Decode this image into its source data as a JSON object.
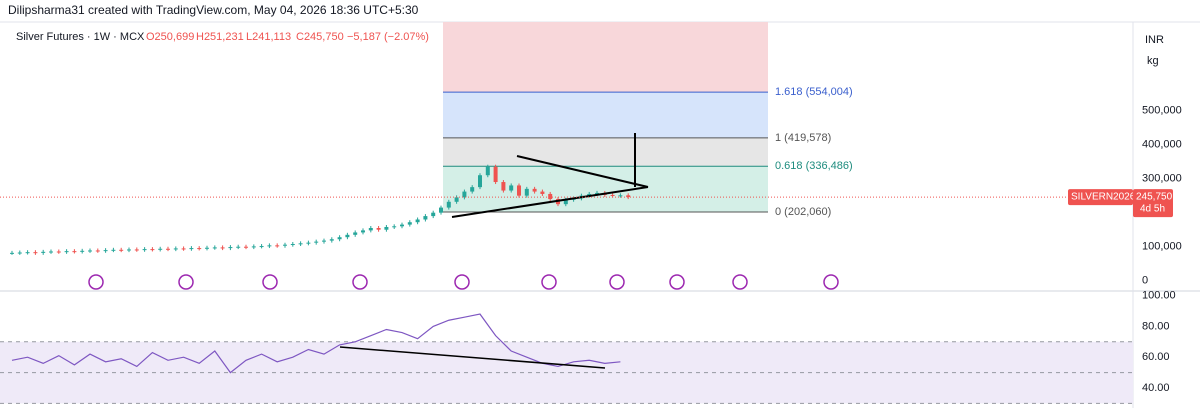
{
  "header": {
    "text": "Dilipsharma31 created with TradingView.com, May 04, 2026 18:36 UTC+5:30"
  },
  "legend": {
    "symbol": "Silver Futures · 1W · MCX",
    "open": "O250,699",
    "high": "H251,231",
    "low": "L241,113",
    "close": "C245,750",
    "change": "−5,187 (−2.07%)"
  },
  "price_axis": {
    "currency": "INR",
    "unit": "kg",
    "ylim": [
      -30000,
      760000
    ],
    "yticks": [
      {
        "value": 500000,
        "label": "500,000"
      },
      {
        "value": 400000,
        "label": "400,000"
      },
      {
        "value": 300000,
        "label": "300,000"
      },
      {
        "value": 100000,
        "label": "100,000"
      },
      0
    ]
  },
  "fib_levels": [
    {
      "label": "1.618 (554,004)",
      "price": 554004,
      "color": "#3a5fcd"
    },
    {
      "label": "1 (419,578)",
      "price": 419578,
      "color": "#555555"
    },
    {
      "label": "0.618 (336,486)",
      "price": 336486,
      "color": "#1e8c7e"
    },
    {
      "label": "0 (202,060)",
      "price": 202060,
      "color": "#555555"
    }
  ],
  "price_tag": {
    "symbol": "SILVERN2026",
    "price": {
      "value": 245750,
      "label": "245,750"
    },
    "countdown": "4d 5h"
  },
  "closes": [
    82000,
    83000,
    84000,
    82000,
    85000,
    86000,
    85000,
    87000,
    86000,
    88000,
    89000,
    88000,
    90000,
    91000,
    90000,
    92000,
    91000,
    93000,
    92000,
    94000,
    93000,
    95000,
    94000,
    96000,
    95000,
    97000,
    98000,
    96000,
    99000,
    100000,
    99000,
    101000,
    102000,
    104000,
    103000,
    106000,
    108000,
    110000,
    112000,
    115000,
    118000,
    122000,
    128000,
    135000,
    142000,
    148000,
    155000,
    150000,
    158000,
    160000,
    165000,
    172000,
    180000,
    190000,
    200000,
    215000,
    232000,
    245000,
    262000,
    275000,
    310000,
    335000,
    290000,
    265000,
    280000,
    250000,
    270000,
    262000,
    255000,
    240000,
    225000,
    238000,
    242000,
    250000,
    255000,
    258000,
    252000,
    250000,
    251000,
    245750
  ],
  "rsi_axis": {
    "ylim": [
      27,
      103
    ],
    "yticks": [
      {
        "value": 100,
        "label": "100.00"
      },
      {
        "value": 80,
        "label": "80.00"
      },
      {
        "value": 60,
        "label": "60.00"
      },
      {
        "value": 40,
        "label": "40.00"
      }
    ]
  },
  "rsi": [
    58,
    60,
    56,
    61,
    55,
    62,
    57,
    59,
    54,
    63,
    58,
    60,
    56,
    64,
    50,
    58,
    62,
    57,
    60,
    65,
    62,
    68,
    70,
    74,
    78,
    76,
    72,
    80,
    84,
    86,
    88,
    74,
    64,
    60,
    56,
    54,
    57,
    58,
    56,
    57
  ]
}
